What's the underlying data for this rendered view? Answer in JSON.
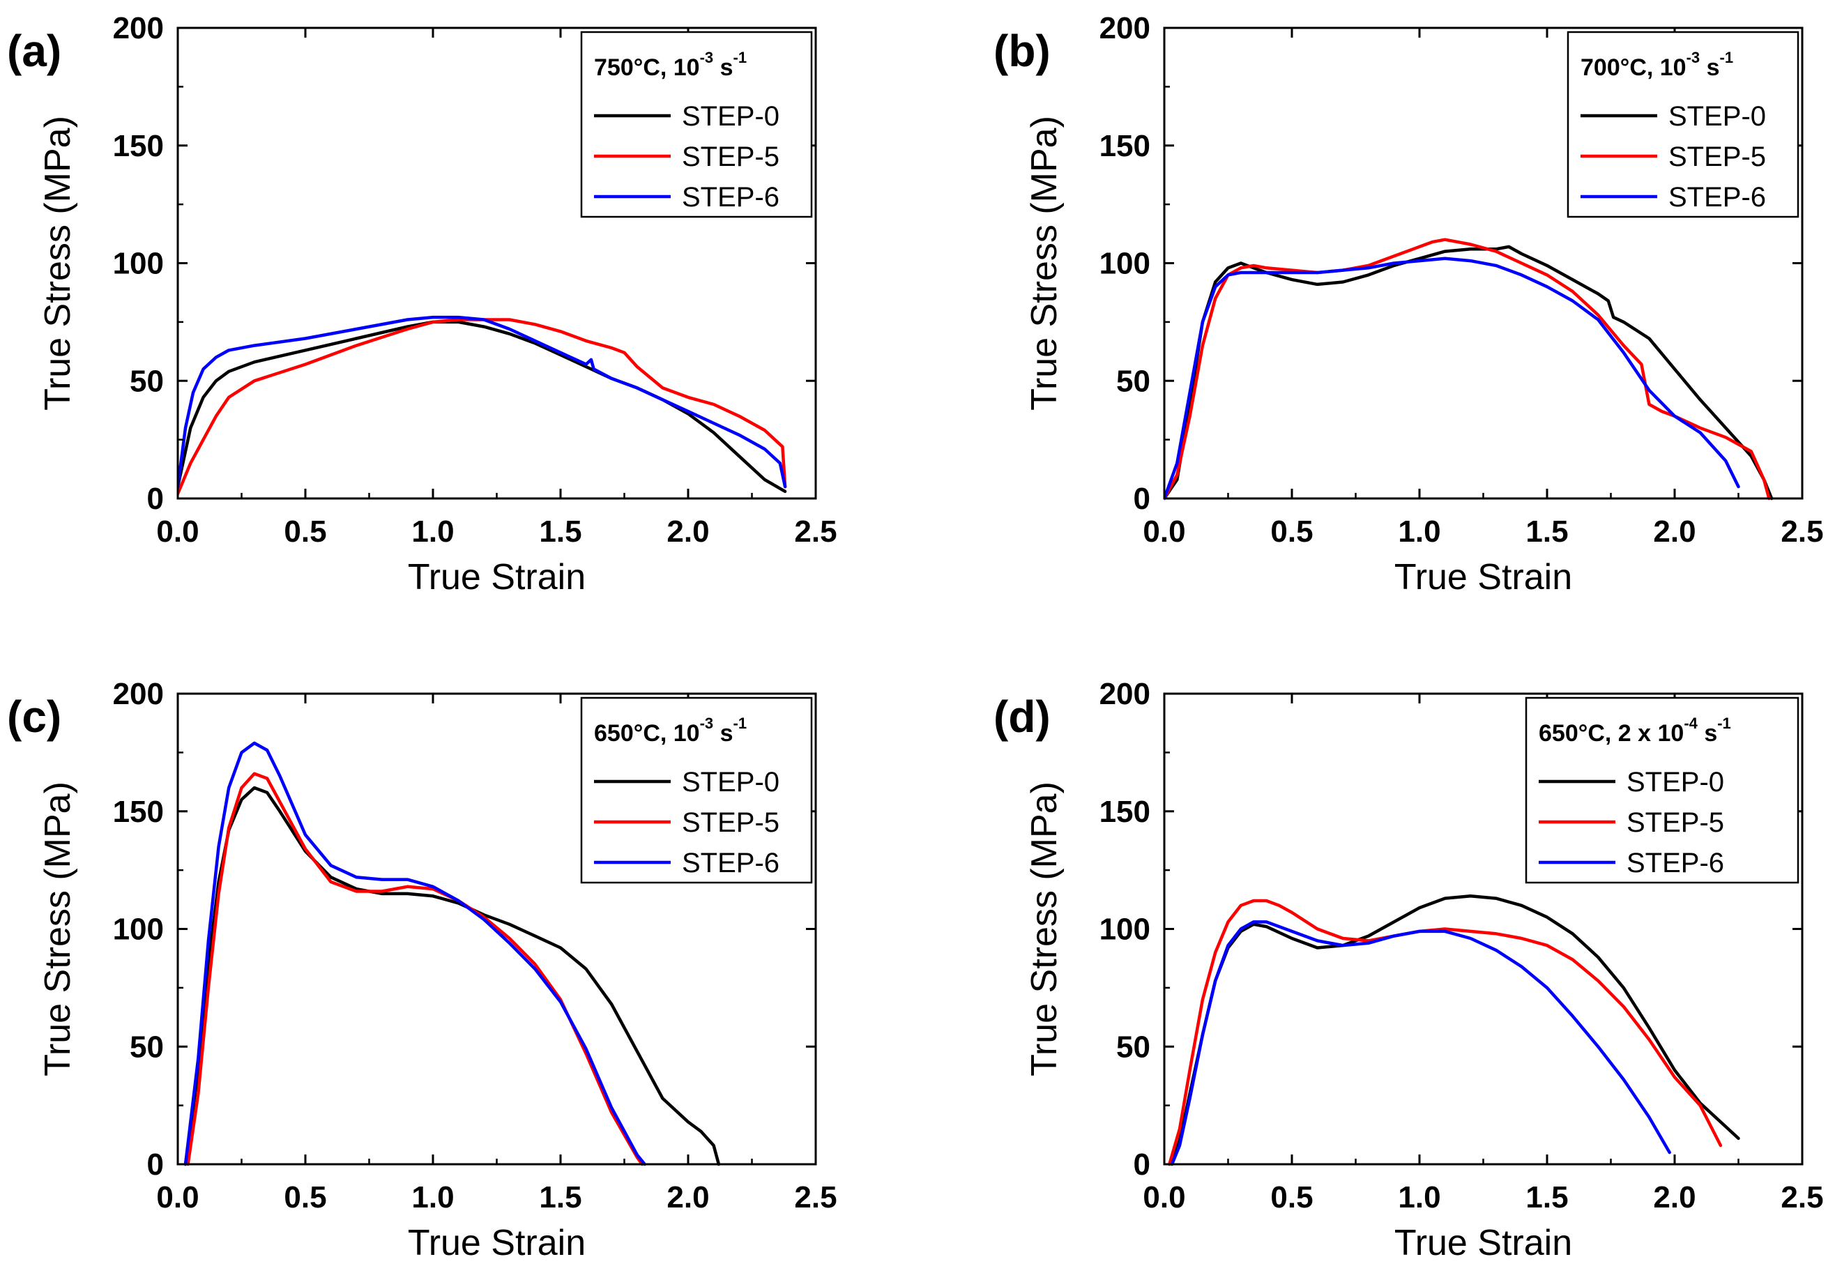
{
  "figure": {
    "colors": {
      "STEP-0": "#000000",
      "STEP-5": "#ff0000",
      "STEP-6": "#0000ff"
    }
  },
  "chart_data": [
    {
      "panel": "(a)",
      "type": "line",
      "xlabel": "True Strain",
      "ylabel": "True Stress (MPa)",
      "xlim": [
        0,
        2.5
      ],
      "ylim": [
        0,
        200
      ],
      "xticks": [
        "0.0",
        "0.5",
        "1.0",
        "1.5",
        "2.0",
        "2.5"
      ],
      "yticks": [
        "0",
        "50",
        "100",
        "150",
        "200"
      ],
      "legend": {
        "position": "top-right",
        "title_main": "750°C, 10",
        "title_exp1": "-3",
        "title_unit": " s",
        "title_exp2": "-1"
      },
      "series": [
        {
          "name": "STEP-0",
          "x": [
            0,
            0.05,
            0.1,
            0.15,
            0.2,
            0.3,
            0.5,
            0.7,
            0.9,
            1.0,
            1.1,
            1.2,
            1.3,
            1.4,
            1.5,
            1.6,
            1.7,
            1.8,
            1.9,
            2.0,
            2.1,
            2.2,
            2.3,
            2.38
          ],
          "y": [
            5,
            30,
            43,
            50,
            54,
            58,
            63,
            68,
            73,
            75,
            75,
            73,
            70,
            66,
            61,
            56,
            51,
            47,
            42,
            36,
            28,
            18,
            8,
            3
          ]
        },
        {
          "name": "STEP-5",
          "x": [
            0,
            0.05,
            0.1,
            0.15,
            0.2,
            0.3,
            0.5,
            0.7,
            0.9,
            1.0,
            1.1,
            1.2,
            1.3,
            1.4,
            1.5,
            1.6,
            1.7,
            1.75,
            1.8,
            1.9,
            2.0,
            2.1,
            2.2,
            2.3,
            2.37,
            2.38
          ],
          "y": [
            2,
            15,
            25,
            35,
            43,
            50,
            57,
            65,
            72,
            75,
            76,
            76,
            76,
            74,
            71,
            67,
            64,
            62,
            56,
            47,
            43,
            40,
            35,
            29,
            22,
            5
          ]
        },
        {
          "name": "STEP-6",
          "x": [
            0,
            0.03,
            0.06,
            0.1,
            0.15,
            0.2,
            0.3,
            0.5,
            0.7,
            0.9,
            1.0,
            1.1,
            1.2,
            1.3,
            1.4,
            1.5,
            1.6,
            1.62,
            1.63,
            1.7,
            1.8,
            1.9,
            2.0,
            2.1,
            2.2,
            2.3,
            2.36,
            2.38
          ],
          "y": [
            5,
            30,
            45,
            55,
            60,
            63,
            65,
            68,
            72,
            76,
            77,
            77,
            76,
            72,
            67,
            62,
            57,
            59,
            55,
            51,
            47,
            42,
            37,
            32,
            27,
            21,
            15,
            5
          ]
        }
      ]
    },
    {
      "panel": "(b)",
      "type": "line",
      "xlabel": "True Strain",
      "ylabel": "True Stress (MPa)",
      "xlim": [
        0,
        2.5
      ],
      "ylim": [
        0,
        200
      ],
      "xticks": [
        "0.0",
        "0.5",
        "1.0",
        "1.5",
        "2.0",
        "2.5"
      ],
      "yticks": [
        "0",
        "50",
        "100",
        "150",
        "200"
      ],
      "legend": {
        "position": "top-right",
        "title_main": "700°C, 10",
        "title_exp1": "-3",
        "title_unit": " s",
        "title_exp2": "-1"
      },
      "series": [
        {
          "name": "STEP-0",
          "x": [
            0,
            0.05,
            0.1,
            0.15,
            0.2,
            0.25,
            0.3,
            0.35,
            0.4,
            0.5,
            0.6,
            0.7,
            0.8,
            0.9,
            1.0,
            1.1,
            1.2,
            1.3,
            1.35,
            1.4,
            1.5,
            1.6,
            1.7,
            1.74,
            1.76,
            1.8,
            1.9,
            2.0,
            2.1,
            2.2,
            2.3,
            2.35,
            2.38
          ],
          "y": [
            0,
            8,
            40,
            75,
            92,
            98,
            100,
            98,
            96,
            93,
            91,
            92,
            95,
            99,
            102,
            105,
            106,
            106,
            107,
            104,
            99,
            93,
            87,
            84,
            77,
            75,
            68,
            55,
            42,
            30,
            18,
            8,
            0
          ]
        },
        {
          "name": "STEP-5",
          "x": [
            0,
            0.05,
            0.1,
            0.15,
            0.2,
            0.25,
            0.3,
            0.35,
            0.4,
            0.5,
            0.6,
            0.7,
            0.8,
            0.9,
            1.0,
            1.05,
            1.1,
            1.15,
            1.2,
            1.3,
            1.4,
            1.5,
            1.6,
            1.7,
            1.8,
            1.87,
            1.9,
            1.95,
            2.0,
            2.1,
            2.2,
            2.3,
            2.35,
            2.37
          ],
          "y": [
            0,
            10,
            35,
            65,
            85,
            95,
            98,
            99,
            98,
            97,
            96,
            97,
            99,
            103,
            107,
            109,
            110,
            109,
            108,
            105,
            100,
            95,
            88,
            78,
            65,
            57,
            40,
            37,
            35,
            30,
            26,
            20,
            8,
            0
          ]
        },
        {
          "name": "STEP-6",
          "x": [
            0,
            0.05,
            0.1,
            0.15,
            0.2,
            0.25,
            0.3,
            0.4,
            0.5,
            0.6,
            0.7,
            0.8,
            0.9,
            1.0,
            1.1,
            1.2,
            1.3,
            1.4,
            1.5,
            1.6,
            1.7,
            1.8,
            1.9,
            2.0,
            2.1,
            2.2,
            2.25
          ],
          "y": [
            0,
            15,
            45,
            75,
            90,
            95,
            96,
            96,
            96,
            96,
            97,
            98,
            100,
            101,
            102,
            101,
            99,
            95,
            90,
            84,
            76,
            62,
            46,
            35,
            28,
            16,
            5
          ]
        }
      ]
    },
    {
      "panel": "(c)",
      "type": "line",
      "xlabel": "True Strain",
      "ylabel": "True Stress (MPa)",
      "xlim": [
        0,
        2.5
      ],
      "ylim": [
        0,
        200
      ],
      "xticks": [
        "0.0",
        "0.5",
        "1.0",
        "1.5",
        "2.0",
        "2.5"
      ],
      "yticks": [
        "0",
        "50",
        "100",
        "150",
        "200"
      ],
      "legend": {
        "position": "top-right",
        "title_main": "650°C, 10",
        "title_exp1": "-3",
        "title_unit": " s",
        "title_exp2": "-1"
      },
      "series": [
        {
          "name": "STEP-0",
          "x": [
            0.03,
            0.08,
            0.12,
            0.16,
            0.2,
            0.25,
            0.3,
            0.35,
            0.4,
            0.5,
            0.6,
            0.7,
            0.8,
            0.9,
            1.0,
            1.1,
            1.2,
            1.3,
            1.4,
            1.5,
            1.6,
            1.7,
            1.8,
            1.9,
            2.0,
            2.05,
            2.1,
            2.12
          ],
          "y": [
            0,
            40,
            85,
            120,
            142,
            155,
            160,
            158,
            150,
            133,
            122,
            117,
            115,
            115,
            114,
            111,
            106,
            102,
            97,
            92,
            83,
            68,
            48,
            28,
            18,
            14,
            8,
            0
          ]
        },
        {
          "name": "STEP-5",
          "x": [
            0.04,
            0.08,
            0.12,
            0.16,
            0.2,
            0.25,
            0.3,
            0.35,
            0.4,
            0.5,
            0.6,
            0.7,
            0.8,
            0.9,
            1.0,
            1.1,
            1.2,
            1.3,
            1.4,
            1.5,
            1.6,
            1.7,
            1.8,
            1.82
          ],
          "y": [
            0,
            30,
            75,
            115,
            143,
            160,
            166,
            164,
            154,
            134,
            120,
            116,
            116,
            118,
            117,
            112,
            105,
            96,
            85,
            70,
            47,
            22,
            3,
            0
          ]
        },
        {
          "name": "STEP-6",
          "x": [
            0.03,
            0.08,
            0.12,
            0.16,
            0.2,
            0.25,
            0.3,
            0.35,
            0.4,
            0.5,
            0.6,
            0.7,
            0.8,
            0.9,
            1.0,
            1.1,
            1.2,
            1.3,
            1.4,
            1.5,
            1.6,
            1.7,
            1.8,
            1.83
          ],
          "y": [
            0,
            45,
            95,
            135,
            160,
            175,
            179,
            176,
            165,
            140,
            127,
            122,
            121,
            121,
            118,
            112,
            104,
            94,
            83,
            69,
            49,
            24,
            4,
            0
          ]
        }
      ]
    },
    {
      "panel": "(d)",
      "type": "line",
      "xlabel": "True Strain",
      "ylabel": "True Stress (MPa)",
      "xlim": [
        0,
        2.5
      ],
      "ylim": [
        0,
        200
      ],
      "xticks": [
        "0.0",
        "0.5",
        "1.0",
        "1.5",
        "2.0",
        "2.5"
      ],
      "yticks": [
        "0",
        "50",
        "100",
        "150",
        "200"
      ],
      "legend": {
        "position": "top-right",
        "title_main": "650°C, 2 x 10",
        "title_exp1": "-4",
        "title_unit": " s",
        "title_exp2": "-1"
      },
      "series": [
        {
          "name": "STEP-0",
          "x": [
            0.02,
            0.06,
            0.1,
            0.15,
            0.2,
            0.25,
            0.3,
            0.35,
            0.4,
            0.5,
            0.6,
            0.7,
            0.8,
            0.9,
            1.0,
            1.1,
            1.2,
            1.3,
            1.4,
            1.5,
            1.6,
            1.7,
            1.8,
            1.9,
            2.0,
            2.1,
            2.2,
            2.25
          ],
          "y": [
            0,
            10,
            30,
            55,
            78,
            92,
            99,
            102,
            101,
            96,
            92,
            93,
            97,
            103,
            109,
            113,
            114,
            113,
            110,
            105,
            98,
            88,
            75,
            58,
            40,
            26,
            16,
            11
          ]
        },
        {
          "name": "STEP-5",
          "x": [
            0.02,
            0.06,
            0.1,
            0.15,
            0.2,
            0.25,
            0.3,
            0.35,
            0.4,
            0.45,
            0.5,
            0.6,
            0.7,
            0.8,
            0.9,
            1.0,
            1.1,
            1.2,
            1.3,
            1.4,
            1.5,
            1.6,
            1.7,
            1.8,
            1.9,
            2.0,
            2.1,
            2.18
          ],
          "y": [
            0,
            15,
            40,
            70,
            90,
            103,
            110,
            112,
            112,
            110,
            107,
            100,
            96,
            95,
            97,
            99,
            100,
            99,
            98,
            96,
            93,
            87,
            78,
            67,
            53,
            37,
            25,
            8
          ]
        },
        {
          "name": "STEP-6",
          "x": [
            0.03,
            0.06,
            0.1,
            0.15,
            0.2,
            0.25,
            0.3,
            0.35,
            0.4,
            0.5,
            0.6,
            0.7,
            0.8,
            0.9,
            1.0,
            1.1,
            1.2,
            1.3,
            1.4,
            1.5,
            1.6,
            1.7,
            1.8,
            1.9,
            1.98
          ],
          "y": [
            0,
            8,
            28,
            55,
            78,
            93,
            100,
            103,
            103,
            99,
            95,
            93,
            94,
            97,
            99,
            99,
            96,
            91,
            84,
            75,
            63,
            50,
            36,
            20,
            5
          ]
        }
      ]
    }
  ]
}
